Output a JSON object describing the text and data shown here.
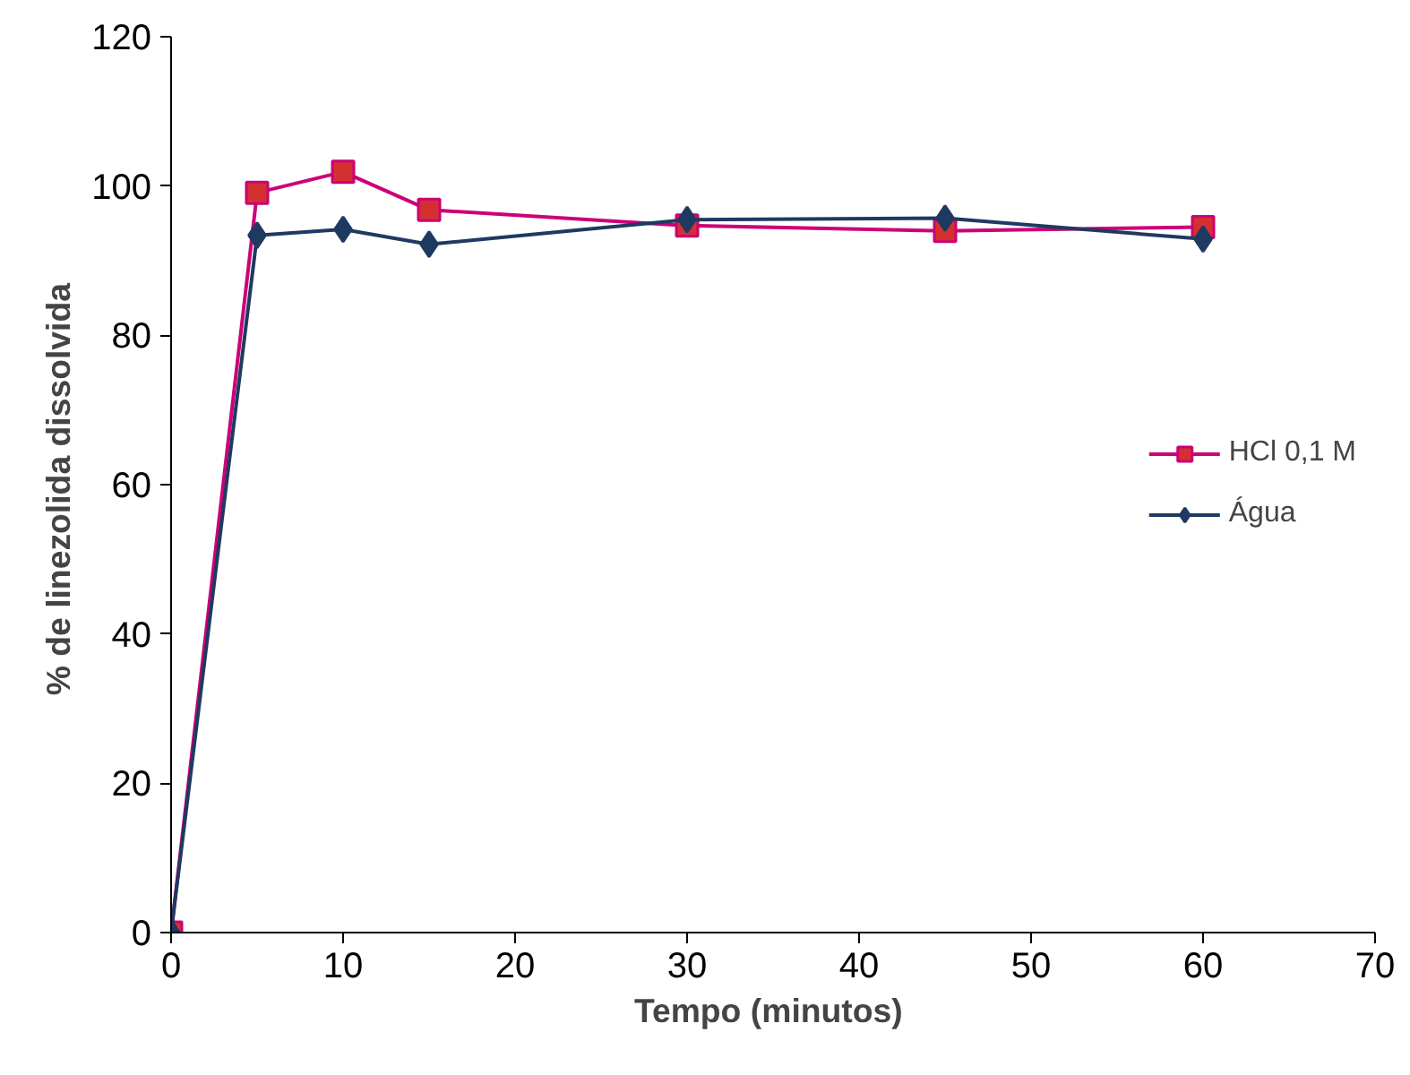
{
  "chart_data": {
    "type": "line",
    "xlabel": "Tempo  (minutos)",
    "ylabel": "%  de linezolida dissolvida",
    "x": [
      0,
      5,
      10,
      15,
      30,
      45,
      60
    ],
    "series": [
      {
        "name": "HCl 0,1 M",
        "color": "#cc0077",
        "marker": "square",
        "values": [
          0,
          99.1,
          101.9,
          96.8,
          94.7,
          94.0,
          94.5
        ]
      },
      {
        "name": "Água",
        "color": "#1f3a60",
        "marker": "diamond",
        "values": [
          0,
          93.4,
          94.2,
          92.2,
          95.5,
          95.7,
          92.9
        ]
      }
    ],
    "xlim": [
      0,
      70
    ],
    "xticks": [
      0,
      10,
      20,
      30,
      40,
      50,
      60,
      70
    ],
    "ylim": [
      0,
      120
    ],
    "yticks": [
      0,
      20,
      40,
      60,
      80,
      100,
      120
    ],
    "grid": false,
    "legend": "right",
    "line_style": "solid"
  }
}
